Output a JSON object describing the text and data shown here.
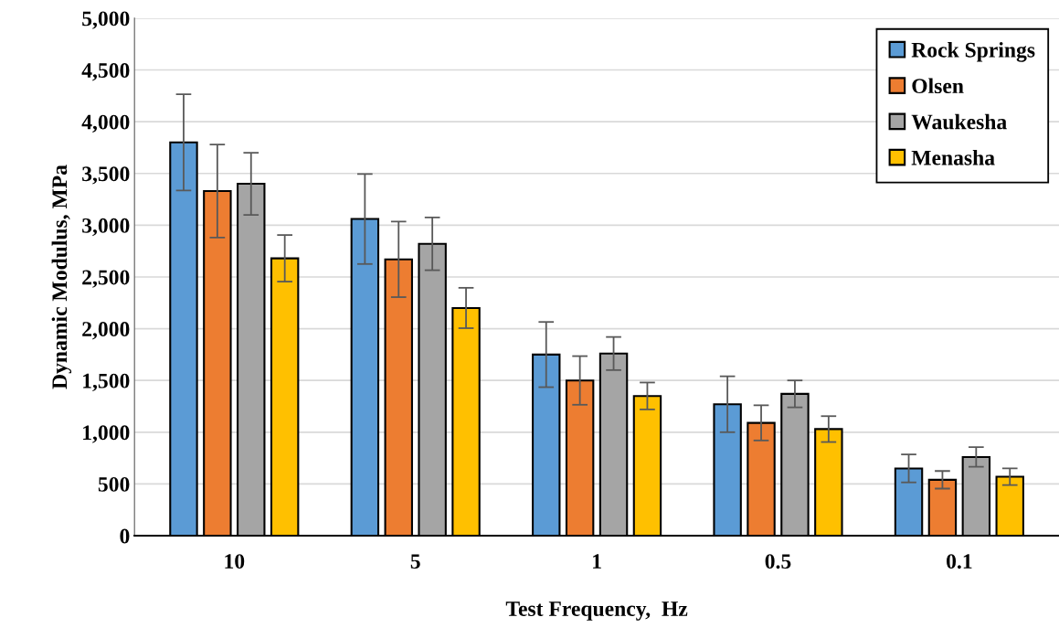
{
  "chart_data": {
    "type": "bar",
    "xlabel": "Test Frequency,  Hz",
    "ylabel": "Dynamic Modulus, MPa",
    "categories": [
      "10",
      "5",
      "1",
      "0.5",
      "0.1"
    ],
    "series": [
      {
        "name": "Rock Springs",
        "color": "#5b9bd5",
        "values": [
          3800,
          3060,
          1750,
          1270,
          650
        ],
        "errors": [
          465,
          435,
          315,
          270,
          135
        ]
      },
      {
        "name": "Olsen",
        "color": "#ed7d31",
        "values": [
          3330,
          2670,
          1500,
          1090,
          540
        ],
        "errors": [
          450,
          365,
          235,
          170,
          85
        ]
      },
      {
        "name": "Waukesha",
        "color": "#a5a5a5",
        "values": [
          3400,
          2820,
          1760,
          1370,
          760
        ],
        "errors": [
          300,
          255,
          160,
          130,
          95
        ]
      },
      {
        "name": "Menasha",
        "color": "#ffc000",
        "values": [
          2680,
          2200,
          1350,
          1030,
          570
        ],
        "errors": [
          225,
          195,
          130,
          125,
          80
        ]
      }
    ],
    "ylim": [
      0,
      5000
    ],
    "yticks": [
      0,
      500,
      {
        "value": 1000,
        "label": "1,000"
      },
      {
        "value": 1500,
        "label": "1,500"
      },
      {
        "value": 2000,
        "label": "2,000"
      },
      {
        "value": 2500,
        "label": "2,500"
      },
      {
        "value": 3000,
        "label": "3,000"
      },
      {
        "value": 3500,
        "label": "3,500"
      },
      {
        "value": 4000,
        "label": "4,000"
      },
      {
        "value": 4500,
        "label": "4,500"
      },
      {
        "value": 5000,
        "label": "5,000"
      }
    ],
    "grid": "y",
    "legend": "top right"
  }
}
